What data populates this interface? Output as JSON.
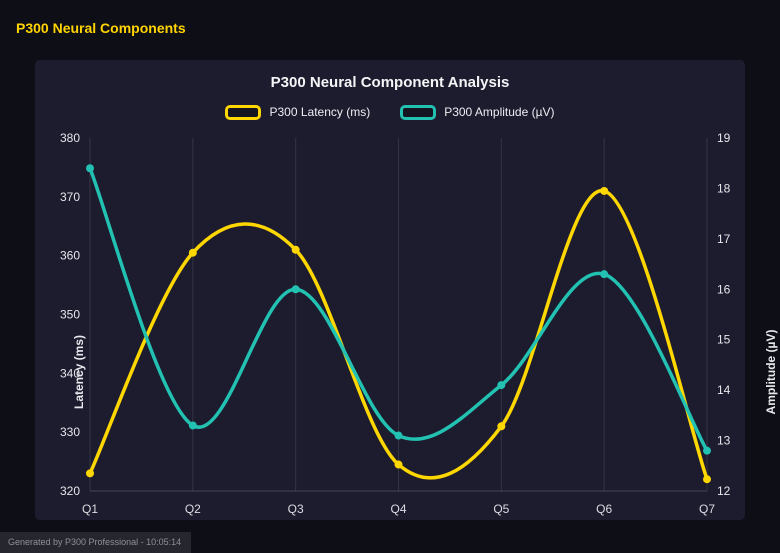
{
  "page": {
    "header": "P300 Neural Components",
    "footer": "Generated by P300 Professional - 10:05:14"
  },
  "chart": {
    "title": "P300 Neural Component Analysis",
    "ylabel_left": "Latency (ms)",
    "ylabel_right": "Amplitude (µV)",
    "legend": [
      {
        "label": "P300 Latency (ms)",
        "color": "#ffd700"
      },
      {
        "label": "P300 Amplitude (µV)",
        "color": "#22c1b2"
      }
    ]
  },
  "chart_data": {
    "type": "line",
    "title": "P300 Neural Component Analysis",
    "categories": [
      "Q1",
      "Q2",
      "Q3",
      "Q4",
      "Q5",
      "Q6",
      "Q7"
    ],
    "series": [
      {
        "name": "P300 Latency (ms)",
        "axis": "left",
        "color": "#ffd700",
        "values": [
          323,
          360.5,
          361,
          324.5,
          331,
          371,
          322
        ]
      },
      {
        "name": "P300 Amplitude (µV)",
        "axis": "right",
        "color": "#22c1b2",
        "values": [
          18.4,
          13.3,
          16.0,
          13.1,
          14.1,
          16.3,
          12.8
        ]
      }
    ],
    "ylabel_left": "Latency (ms)",
    "ylabel_right": "Amplitude (µV)",
    "ylim_left": [
      320,
      380
    ],
    "ylim_right": [
      12,
      19
    ],
    "yticks_left": [
      320,
      330,
      340,
      350,
      360,
      370,
      380
    ],
    "yticks_right": [
      12,
      13,
      14,
      15,
      16,
      17,
      18,
      19
    ],
    "grid": "vertical",
    "legend_position": "top",
    "smoothing": "spline"
  }
}
